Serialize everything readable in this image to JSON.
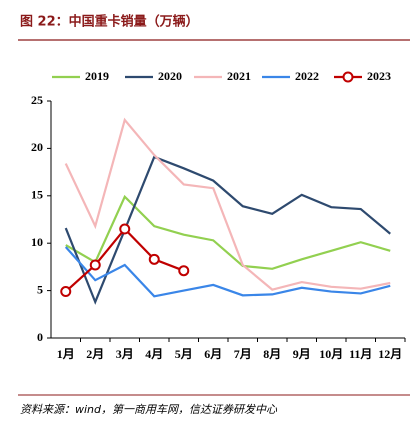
{
  "chart_data": {
    "type": "line",
    "title": "图 22：中国重卡销量（万辆）",
    "source": "资料来源：wind，第一商用车网，信达证券研发中心",
    "categories": [
      "1月",
      "2月",
      "3月",
      "4月",
      "5月",
      "6月",
      "7月",
      "8月",
      "9月",
      "10月",
      "11月",
      "12月"
    ],
    "ylim": [
      0,
      25
    ],
    "yticks": [
      0,
      5,
      10,
      15,
      20,
      25
    ],
    "series": [
      {
        "name": "2019",
        "color": "#92d050",
        "values": [
          9.8,
          8.0,
          14.9,
          11.8,
          10.9,
          10.3,
          7.6,
          7.3,
          8.3,
          9.2,
          10.1,
          9.2
        ]
      },
      {
        "name": "2020",
        "color": "#2e4a6f",
        "values": [
          11.6,
          3.8,
          11.4,
          19.1,
          17.9,
          16.6,
          13.9,
          13.1,
          15.1,
          13.8,
          13.6,
          11.0
        ]
      },
      {
        "name": "2021",
        "color": "#f4b6b8",
        "values": [
          18.4,
          11.8,
          23.0,
          19.3,
          16.2,
          15.8,
          7.7,
          5.1,
          5.9,
          5.4,
          5.2,
          5.8
        ]
      },
      {
        "name": "2022",
        "color": "#3a86e8",
        "values": [
          9.6,
          6.1,
          7.7,
          4.4,
          5.0,
          5.6,
          4.5,
          4.6,
          5.3,
          4.9,
          4.7,
          5.5
        ]
      },
      {
        "name": "2023",
        "color": "#c00000",
        "markers": true,
        "values": [
          4.9,
          7.7,
          11.5,
          8.3,
          7.1,
          null,
          null,
          null,
          null,
          null,
          null,
          null
        ]
      }
    ]
  }
}
